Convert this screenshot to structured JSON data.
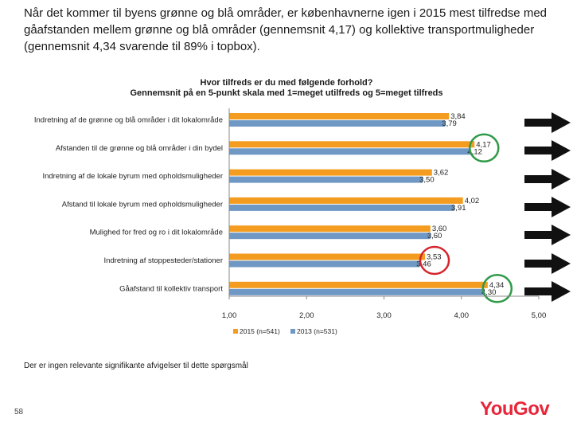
{
  "headline": "Når det kommer til byens grønne og blå områder, er københavnerne igen i 2015 mest tilfredse med gåafstanden mellem grønne og blå områder (gennemsnit 4,17) og kollektive transportmuligheder (gennemsnit 4,34 svarende til 89% i topbox).",
  "footnote": "Der er ingen relevante signifikante afvigelser til dette spørgsmål",
  "page_number": "58",
  "brand": "YouGov",
  "colors": {
    "series_2015": "#f39c1f",
    "series_2013": "#6f98c4",
    "circle_green": "#2f9a48",
    "circle_red": "#d4252b",
    "brand_red": "#e8263a"
  },
  "trend_icon": "right-arrow-icon",
  "chart_data": {
    "type": "bar",
    "orientation": "horizontal",
    "title_lines": [
      "Hvor tilfreds er du med følgende forhold?",
      "Gennemsnit på en 5-punkt skala med 1=meget utilfreds og 5=meget tilfreds"
    ],
    "categories": [
      "Indretning af de grønne og blå områder i dit lokalområde",
      "Afstanden til de grønne og blå områder i din bydel",
      "Indretning af de lokale byrum med opholdsmuligheder",
      "Afstand til lokale byrum med opholdsmuligheder",
      "Mulighed for fred og ro i dit lokalområde",
      "Indretning af stoppesteder/stationer",
      "Gåafstand til kollektiv transport"
    ],
    "series": [
      {
        "name": "2015 (n=541)",
        "values": [
          3.84,
          4.17,
          3.62,
          4.02,
          3.6,
          3.53,
          4.34
        ],
        "labels": [
          "3,84",
          "4,17",
          "3,62",
          "4,02",
          "3,60",
          "3,53",
          "4,34"
        ]
      },
      {
        "name": "2013 (n=531)",
        "values": [
          3.79,
          4.12,
          3.5,
          3.91,
          3.6,
          3.46,
          4.3
        ],
        "labels": [
          "3,79",
          "4,12",
          "3,50",
          "3,91",
          "3,60",
          "3,46",
          "4,30"
        ]
      }
    ],
    "xlim": [
      1,
      5
    ],
    "xticks": [
      1,
      2,
      3,
      4,
      5
    ],
    "xtick_labels": [
      "1,00",
      "2,00",
      "3,00",
      "4,00",
      "5,00"
    ],
    "legend_position": "bottom",
    "grid": false,
    "highlights": [
      {
        "category_index": 1,
        "color": "green"
      },
      {
        "category_index": 5,
        "color": "red"
      },
      {
        "category_index": 6,
        "color": "green"
      }
    ]
  }
}
